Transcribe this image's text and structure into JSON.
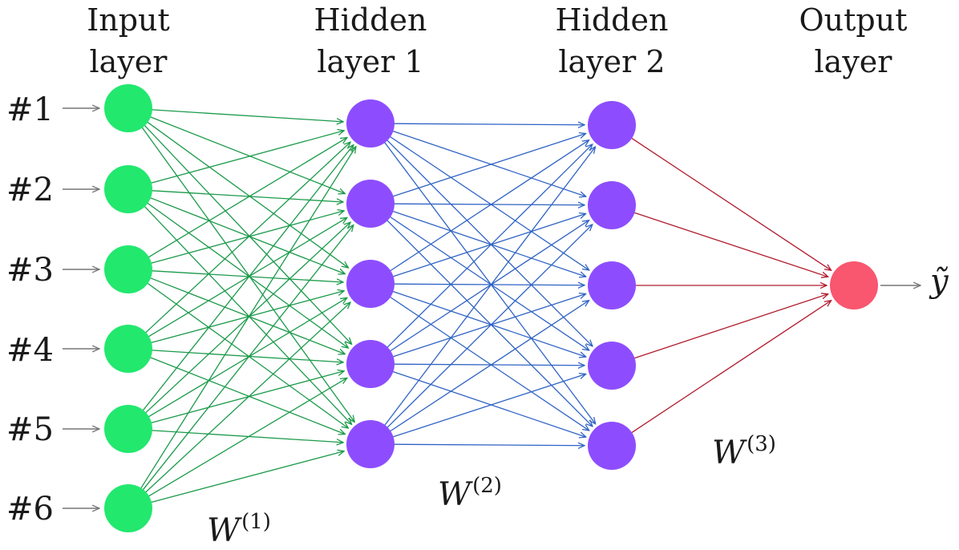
{
  "layers": [
    {
      "title_line1": "Input",
      "title_line2": "layer",
      "color": "#22e86e"
    },
    {
      "title_line1": "Hidden",
      "title_line2": "layer 1",
      "color": "#8d4dff"
    },
    {
      "title_line1": "Hidden",
      "title_line2": "layer 2",
      "color": "#8d4dff"
    },
    {
      "title_line1": "Output",
      "title_line2": "layer",
      "color": "#f9566f"
    }
  ],
  "input_labels": [
    "#1",
    "#2",
    "#3",
    "#4",
    "#5",
    "#6"
  ],
  "output_label": "ỹ",
  "weights": [
    {
      "symbol": "W",
      "superscript": "(1)",
      "color": "#1b9a4a"
    },
    {
      "symbol": "W",
      "superscript": "(2)",
      "color": "#2f63c4"
    },
    {
      "symbol": "W",
      "superscript": "(3)",
      "color": "#b01c2e"
    }
  ],
  "io_arrow_color": "#777777"
}
